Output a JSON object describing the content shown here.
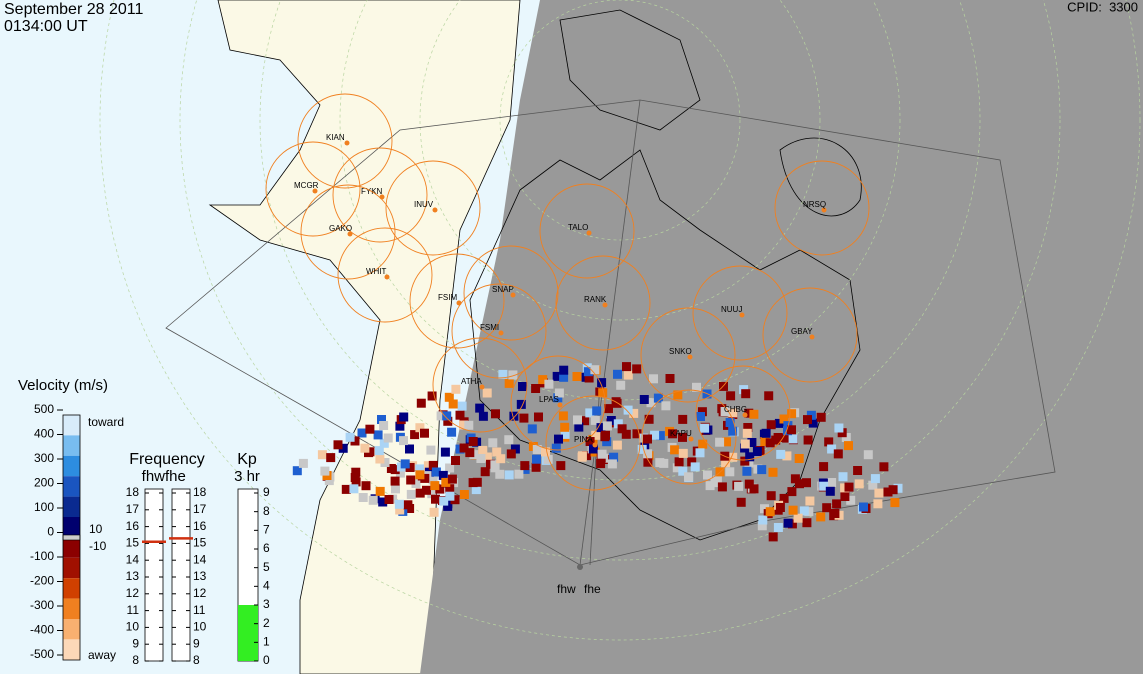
{
  "header": {
    "date": "September 28 2011",
    "time": "0134:00 UT",
    "cpid": "CPID:  3300"
  },
  "stations": [
    "KIAN",
    "MCGR",
    "FYKN",
    "INUV",
    "GAKO",
    "WHIT",
    "FSIM",
    "SNAP",
    "FSMI",
    "RANK",
    "TALO",
    "NRSQ",
    "NUUJ",
    "GBAY",
    "SNKO",
    "ATHA",
    "LPAS",
    "PINA",
    "KAPU",
    "CHBG"
  ],
  "radars": [
    "fhw",
    "fhe"
  ],
  "velocity_scale": {
    "title": "Velocity (m/s)",
    "ticks": [
      500,
      400,
      300,
      200,
      100,
      0,
      -100,
      -200,
      -300,
      -400,
      -500
    ],
    "toward": "toward",
    "away": "away",
    "inner_ticks": [
      10,
      -10
    ]
  },
  "frequency": {
    "title": "Frequency",
    "labels": [
      "fhw",
      "fhe"
    ],
    "ticks": [
      18,
      17,
      16,
      15,
      14,
      13,
      12,
      11,
      10,
      9,
      8
    ],
    "values": [
      15.1,
      15.3
    ]
  },
  "kp": {
    "title": "Kp",
    "period": "3 hr",
    "ticks": [
      9,
      8,
      7,
      6,
      5,
      4,
      3,
      2,
      1,
      0
    ],
    "value": 3
  }
}
